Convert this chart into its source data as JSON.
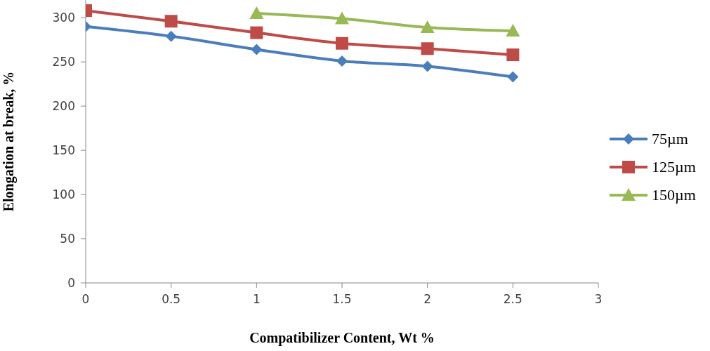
{
  "chart_data": {
    "type": "line",
    "xlabel": "Compatibilizer Content, Wt %",
    "ylabel": "Elongation at break, %",
    "x": [
      0,
      0.5,
      1,
      1.5,
      2,
      2.5
    ],
    "series": [
      {
        "name": "75µm",
        "color": "#4a7ebb",
        "marker": "diamond",
        "values": [
          290,
          279,
          264,
          251,
          245,
          233
        ]
      },
      {
        "name": "125µm",
        "color": "#be4b48",
        "marker": "square",
        "values": [
          308,
          296,
          283,
          271,
          265,
          258
        ]
      },
      {
        "name": "150µm",
        "color": "#98b954",
        "marker": "triangle",
        "values": [
          null,
          null,
          305,
          299,
          289,
          285
        ]
      }
    ],
    "xlim": [
      0,
      3
    ],
    "xticks": [
      0,
      0.5,
      1,
      1.5,
      2,
      2.5,
      3
    ],
    "ylim": [
      0,
      320
    ],
    "yticks": [
      0,
      50,
      100,
      150,
      200,
      250,
      300
    ],
    "grid": false,
    "legend": "right",
    "line_style": "solid"
  }
}
